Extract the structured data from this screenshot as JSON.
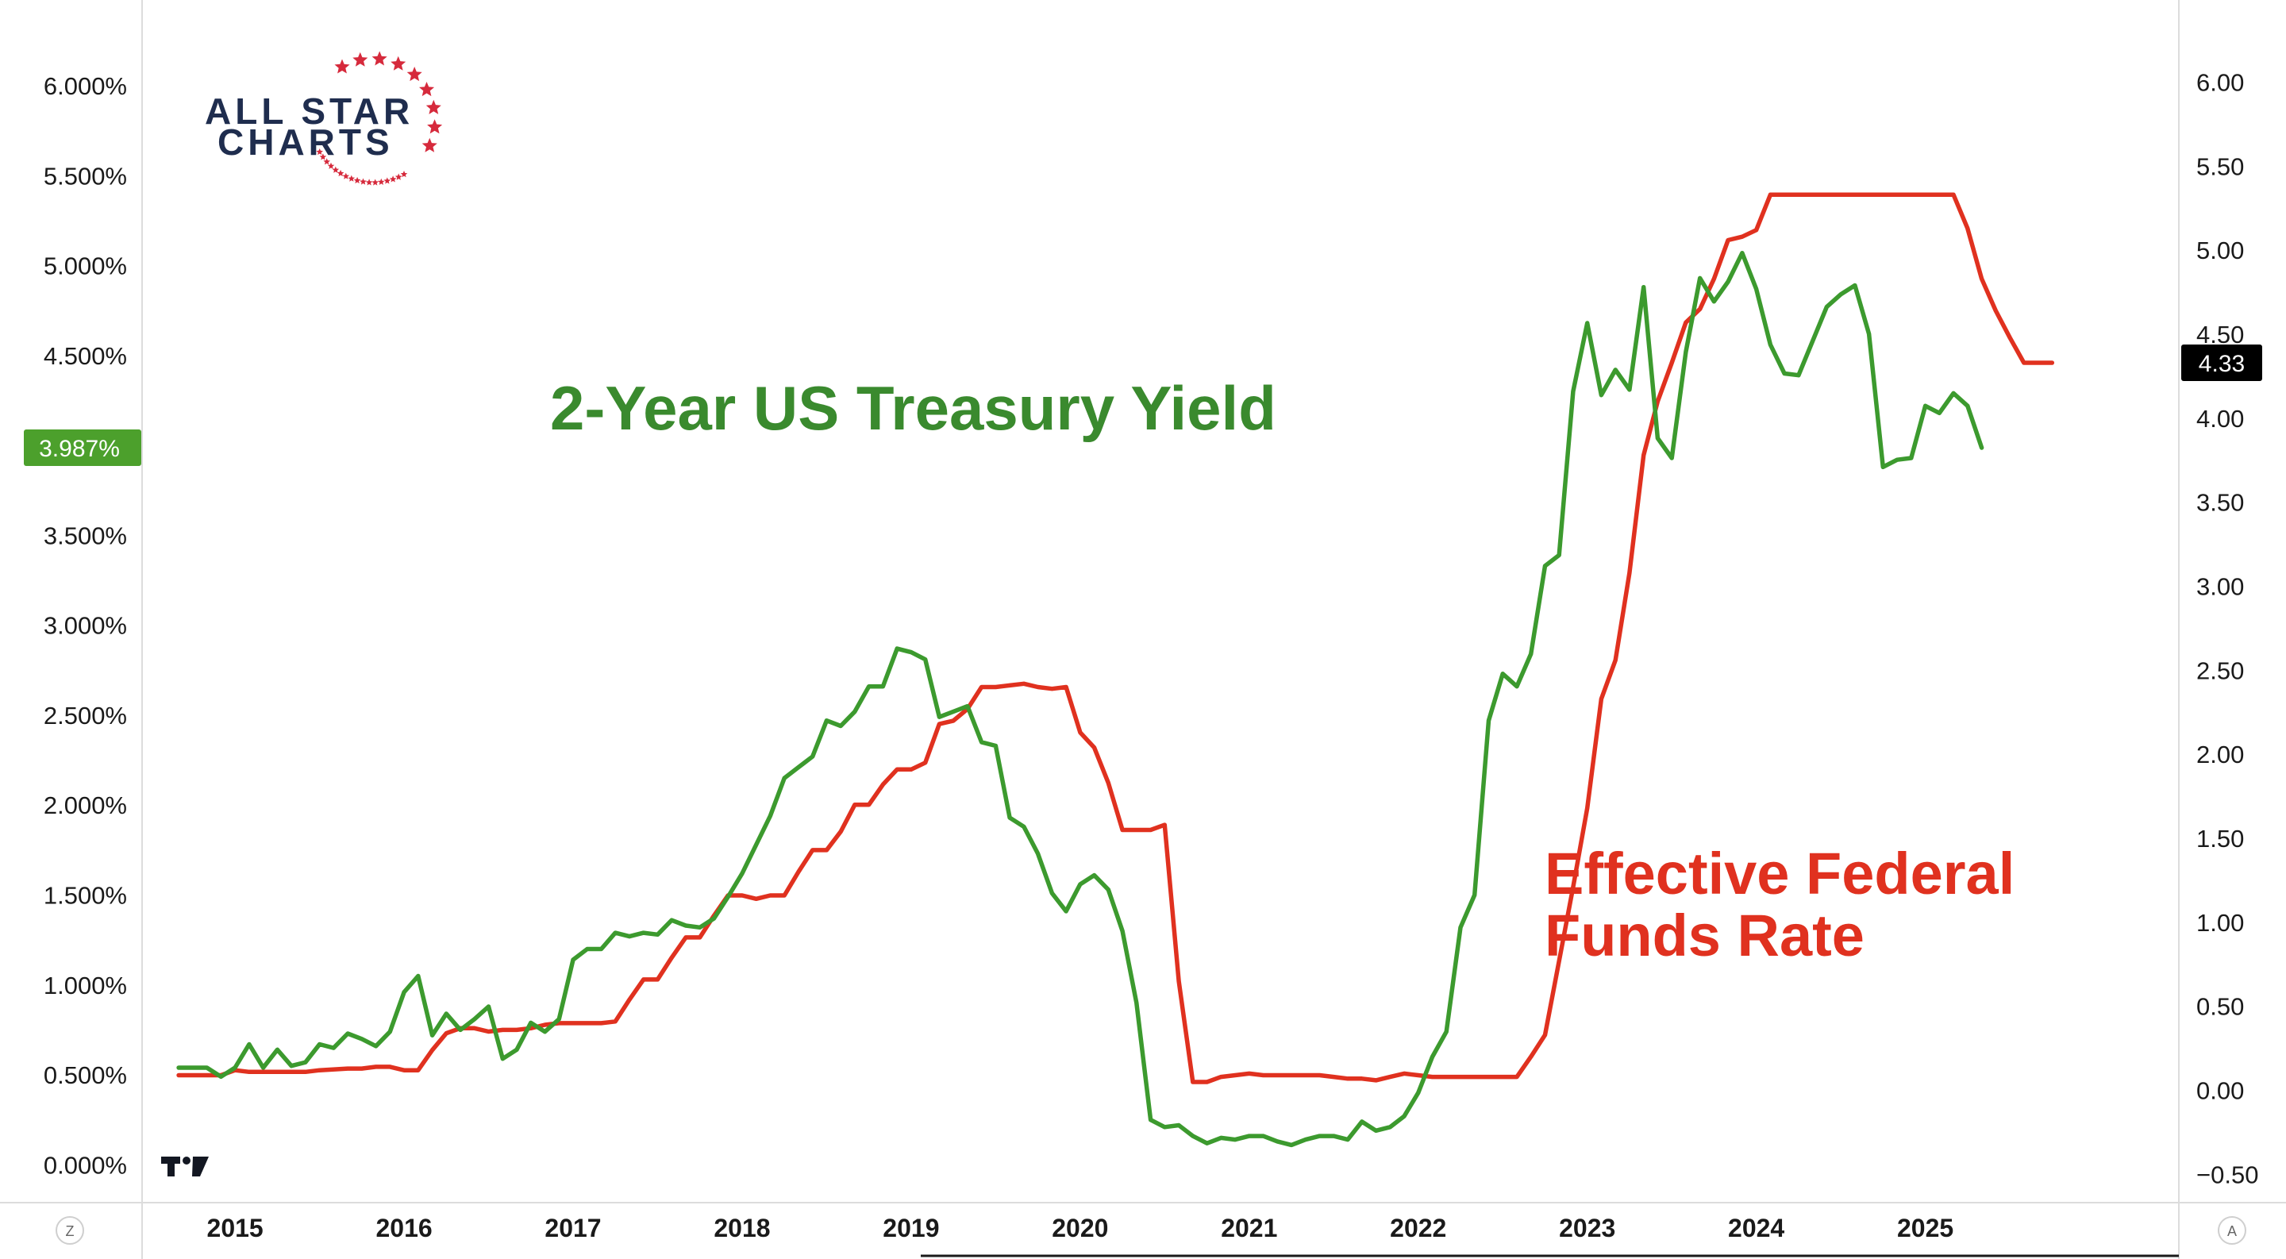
{
  "logo": {
    "line1": "ALL STAR",
    "line2": "CHARTS",
    "brand_navy": "#1f2d4e",
    "brand_red": "#d62a3c"
  },
  "annotations": {
    "treasury": "2-Year US Treasury Yield",
    "fed_line1": "Effective Federal",
    "fed_line2": "Funds Rate"
  },
  "badges": {
    "left_value": "3.987%",
    "right_value": "4.33"
  },
  "corner_buttons": {
    "left": "Z",
    "right": "A"
  },
  "chart_data": {
    "type": "line",
    "x_tick_labels": [
      "2015",
      "2016",
      "2017",
      "2018",
      "2019",
      "2020",
      "2021",
      "2022",
      "2023",
      "2024",
      "2025"
    ],
    "xlim": [
      2014.45,
      2026.5
    ],
    "left_axis": {
      "ticks": [
        "6.000%",
        "5.500%",
        "5.000%",
        "4.500%",
        "4.000%",
        "3.500%",
        "3.000%",
        "2.500%",
        "2.000%",
        "1.500%",
        "1.000%",
        "0.500%",
        "0.000%"
      ],
      "ylim": [
        -0.1,
        6.3
      ]
    },
    "right_axis": {
      "ticks": [
        "6.00",
        "5.50",
        "5.00",
        "4.50",
        "4.00",
        "3.50",
        "3.00",
        "2.50",
        "2.00",
        "1.50",
        "1.00",
        "0.50",
        "0.00",
        "−0.50"
      ],
      "ylim": [
        -0.55,
        6.3
      ]
    },
    "grid": false,
    "colors": {
      "treasury": "#3c9a2e",
      "fed": "#e0311f",
      "left_badge": "#4ca02c",
      "right_badge": "#000000"
    },
    "series": [
      {
        "key": "treasury",
        "axis": "left",
        "points": [
          [
            "2014-09",
            0.54
          ],
          [
            "2014-11",
            0.54
          ],
          [
            "2014-12",
            0.49
          ],
          [
            "2015-01",
            0.54
          ],
          [
            "2015-02",
            0.67
          ],
          [
            "2015-03",
            0.54
          ],
          [
            "2015-04",
            0.64
          ],
          [
            "2015-05",
            0.55
          ],
          [
            "2015-06",
            0.57
          ],
          [
            "2015-07",
            0.67
          ],
          [
            "2015-08",
            0.65
          ],
          [
            "2015-09",
            0.73
          ],
          [
            "2015-10",
            0.7
          ],
          [
            "2015-11",
            0.66
          ],
          [
            "2015-12",
            0.74
          ],
          [
            "2016-01",
            0.96
          ],
          [
            "2016-02",
            1.05
          ],
          [
            "2016-03",
            0.72
          ],
          [
            "2016-04",
            0.84
          ],
          [
            "2016-05",
            0.75
          ],
          [
            "2016-06",
            0.81
          ],
          [
            "2016-07",
            0.88
          ],
          [
            "2016-08",
            0.59
          ],
          [
            "2016-09",
            0.64
          ],
          [
            "2016-10",
            0.79
          ],
          [
            "2016-11",
            0.74
          ],
          [
            "2016-12",
            0.81
          ],
          [
            "2017-01",
            1.14
          ],
          [
            "2017-02",
            1.2
          ],
          [
            "2017-03",
            1.2
          ],
          [
            "2017-04",
            1.29
          ],
          [
            "2017-05",
            1.27
          ],
          [
            "2017-06",
            1.29
          ],
          [
            "2017-07",
            1.28
          ],
          [
            "2017-08",
            1.36
          ],
          [
            "2017-09",
            1.33
          ],
          [
            "2017-10",
            1.32
          ],
          [
            "2017-11",
            1.37
          ],
          [
            "2017-12",
            1.49
          ],
          [
            "2018-01",
            1.62
          ],
          [
            "2018-02",
            1.78
          ],
          [
            "2018-03",
            1.94
          ],
          [
            "2018-04",
            2.15
          ],
          [
            "2018-05",
            2.21
          ],
          [
            "2018-06",
            2.27
          ],
          [
            "2018-07",
            2.47
          ],
          [
            "2018-08",
            2.44
          ],
          [
            "2018-09",
            2.52
          ],
          [
            "2018-10",
            2.66
          ],
          [
            "2018-11",
            2.66
          ],
          [
            "2018-12",
            2.87
          ],
          [
            "2019-01",
            2.85
          ],
          [
            "2019-02",
            2.81
          ],
          [
            "2019-03",
            2.49
          ],
          [
            "2019-04",
            2.52
          ],
          [
            "2019-05",
            2.55
          ],
          [
            "2019-06",
            2.35
          ],
          [
            "2019-07",
            2.33
          ],
          [
            "2019-08",
            1.93
          ],
          [
            "2019-09",
            1.88
          ],
          [
            "2019-10",
            1.73
          ],
          [
            "2019-11",
            1.51
          ],
          [
            "2019-12",
            1.41
          ],
          [
            "2020-01",
            1.56
          ],
          [
            "2020-02",
            1.61
          ],
          [
            "2020-03",
            1.53
          ],
          [
            "2020-04",
            1.3
          ],
          [
            "2020-05",
            0.9
          ],
          [
            "2020-06",
            0.25
          ],
          [
            "2020-07",
            0.21
          ],
          [
            "2020-08",
            0.22
          ],
          [
            "2020-09",
            0.16
          ],
          [
            "2020-10",
            0.12
          ],
          [
            "2020-11",
            0.15
          ],
          [
            "2020-12",
            0.14
          ],
          [
            "2021-01",
            0.16
          ],
          [
            "2021-02",
            0.16
          ],
          [
            "2021-03",
            0.13
          ],
          [
            "2021-04",
            0.11
          ],
          [
            "2021-05",
            0.14
          ],
          [
            "2021-06",
            0.16
          ],
          [
            "2021-07",
            0.16
          ],
          [
            "2021-08",
            0.14
          ],
          [
            "2021-09",
            0.24
          ],
          [
            "2021-10",
            0.19
          ],
          [
            "2021-11",
            0.21
          ],
          [
            "2021-12",
            0.27
          ],
          [
            "2022-01",
            0.4
          ],
          [
            "2022-02",
            0.6
          ],
          [
            "2022-03",
            0.74
          ],
          [
            "2022-04",
            1.32
          ],
          [
            "2022-05",
            1.5
          ],
          [
            "2022-06",
            2.47
          ],
          [
            "2022-07",
            2.73
          ],
          [
            "2022-08",
            2.66
          ],
          [
            "2022-09",
            2.84
          ],
          [
            "2022-10",
            3.33
          ],
          [
            "2022-11",
            3.39
          ],
          [
            "2022-12",
            4.3
          ],
          [
            "2023-01",
            4.68
          ],
          [
            "2023-02",
            4.28
          ],
          [
            "2023-03",
            4.42
          ],
          [
            "2023-04",
            4.31
          ],
          [
            "2023-05",
            4.88
          ],
          [
            "2023-06",
            4.04
          ],
          [
            "2023-07",
            3.93
          ],
          [
            "2023-08",
            4.52
          ],
          [
            "2023-09",
            4.93
          ],
          [
            "2023-10",
            4.8
          ],
          [
            "2023-11",
            4.91
          ],
          [
            "2023-12",
            5.07
          ],
          [
            "2024-01",
            4.87
          ],
          [
            "2024-02",
            4.56
          ],
          [
            "2024-03",
            4.4
          ],
          [
            "2024-04",
            4.39
          ],
          [
            "2024-05",
            4.58
          ],
          [
            "2024-06",
            4.77
          ],
          [
            "2024-07",
            4.84
          ],
          [
            "2024-08",
            4.89
          ],
          [
            "2024-09",
            4.62
          ],
          [
            "2024-10",
            3.88
          ],
          [
            "2024-11",
            3.92
          ],
          [
            "2024-12",
            3.93
          ],
          [
            "2025-01",
            4.22
          ],
          [
            "2025-02",
            4.18
          ],
          [
            "2025-03",
            4.29
          ],
          [
            "2025-04",
            4.22
          ],
          [
            "2025-05",
            3.987
          ]
        ]
      },
      {
        "key": "fed",
        "axis": "right",
        "points": [
          [
            "2014-09",
            0.09
          ],
          [
            "2014-12",
            0.09
          ],
          [
            "2015-01",
            0.12
          ],
          [
            "2015-02",
            0.11
          ],
          [
            "2015-06",
            0.11
          ],
          [
            "2015-07",
            0.12
          ],
          [
            "2015-09",
            0.13
          ],
          [
            "2015-10",
            0.13
          ],
          [
            "2015-11",
            0.14
          ],
          [
            "2015-12",
            0.14
          ],
          [
            "2016-01",
            0.12
          ],
          [
            "2016-02",
            0.12
          ],
          [
            "2016-03",
            0.24
          ],
          [
            "2016-04",
            0.34
          ],
          [
            "2016-05",
            0.37
          ],
          [
            "2016-06",
            0.37
          ],
          [
            "2016-07",
            0.35
          ],
          [
            "2016-08",
            0.36
          ],
          [
            "2016-09",
            0.36
          ],
          [
            "2016-10",
            0.37
          ],
          [
            "2016-11",
            0.39
          ],
          [
            "2016-12",
            0.4
          ],
          [
            "2017-01",
            0.4
          ],
          [
            "2017-02",
            0.4
          ],
          [
            "2017-03",
            0.4
          ],
          [
            "2017-04",
            0.41
          ],
          [
            "2017-05",
            0.54
          ],
          [
            "2017-06",
            0.66
          ],
          [
            "2017-07",
            0.66
          ],
          [
            "2017-08",
            0.79
          ],
          [
            "2017-09",
            0.91
          ],
          [
            "2017-10",
            0.91
          ],
          [
            "2017-11",
            1.04
          ],
          [
            "2017-12",
            1.16
          ],
          [
            "2018-01",
            1.16
          ],
          [
            "2018-02",
            1.14
          ],
          [
            "2018-03",
            1.16
          ],
          [
            "2018-04",
            1.16
          ],
          [
            "2018-05",
            1.3
          ],
          [
            "2018-06",
            1.43
          ],
          [
            "2018-07",
            1.43
          ],
          [
            "2018-08",
            1.54
          ],
          [
            "2018-09",
            1.7
          ],
          [
            "2018-10",
            1.7
          ],
          [
            "2018-11",
            1.82
          ],
          [
            "2018-12",
            1.91
          ],
          [
            "2019-01",
            1.91
          ],
          [
            "2019-02",
            1.95
          ],
          [
            "2019-03",
            2.18
          ],
          [
            "2019-04",
            2.2
          ],
          [
            "2019-05",
            2.27
          ],
          [
            "2019-06",
            2.4
          ],
          [
            "2019-07",
            2.4
          ],
          [
            "2019-08",
            2.41
          ],
          [
            "2019-09",
            2.42
          ],
          [
            "2019-10",
            2.4
          ],
          [
            "2019-11",
            2.39
          ],
          [
            "2019-12",
            2.4
          ],
          [
            "2020-01",
            2.13
          ],
          [
            "2020-02",
            2.04
          ],
          [
            "2020-03",
            1.83
          ],
          [
            "2020-04",
            1.55
          ],
          [
            "2020-05",
            1.55
          ],
          [
            "2020-06",
            1.55
          ],
          [
            "2020-07",
            1.58
          ],
          [
            "2020-08",
            0.65
          ],
          [
            "2020-09",
            0.05
          ],
          [
            "2020-10",
            0.05
          ],
          [
            "2020-11",
            0.08
          ],
          [
            "2020-12",
            0.09
          ],
          [
            "2021-01",
            0.1
          ],
          [
            "2021-02",
            0.09
          ],
          [
            "2021-03",
            0.09
          ],
          [
            "2021-04",
            0.09
          ],
          [
            "2021-05",
            0.09
          ],
          [
            "2021-06",
            0.09
          ],
          [
            "2021-07",
            0.08
          ],
          [
            "2021-08",
            0.07
          ],
          [
            "2021-09",
            0.07
          ],
          [
            "2021-10",
            0.06
          ],
          [
            "2021-11",
            0.08
          ],
          [
            "2021-12",
            0.1
          ],
          [
            "2022-01",
            0.09
          ],
          [
            "2022-02",
            0.08
          ],
          [
            "2022-03",
            0.08
          ],
          [
            "2022-04",
            0.08
          ],
          [
            "2022-05",
            0.08
          ],
          [
            "2022-06",
            0.08
          ],
          [
            "2022-07",
            0.08
          ],
          [
            "2022-08",
            0.08
          ],
          [
            "2022-09",
            0.2
          ],
          [
            "2022-10",
            0.33
          ],
          [
            "2022-11",
            0.77
          ],
          [
            "2022-12",
            1.21
          ],
          [
            "2023-01",
            1.68
          ],
          [
            "2023-02",
            2.33
          ],
          [
            "2023-03",
            2.56
          ],
          [
            "2023-04",
            3.08
          ],
          [
            "2023-05",
            3.78
          ],
          [
            "2023-06",
            4.1
          ],
          [
            "2023-07",
            4.33
          ],
          [
            "2023-08",
            4.57
          ],
          [
            "2023-09",
            4.65
          ],
          [
            "2023-10",
            4.83
          ],
          [
            "2023-11",
            5.06
          ],
          [
            "2023-12",
            5.08
          ],
          [
            "2024-01",
            5.12
          ],
          [
            "2024-02",
            5.33
          ],
          [
            "2024-03",
            5.33
          ],
          [
            "2024-04",
            5.33
          ],
          [
            "2024-05",
            5.33
          ],
          [
            "2024-06",
            5.33
          ],
          [
            "2024-07",
            5.33
          ],
          [
            "2024-08",
            5.33
          ],
          [
            "2024-09",
            5.33
          ],
          [
            "2024-10",
            5.33
          ],
          [
            "2024-11",
            5.33
          ],
          [
            "2024-12",
            5.33
          ],
          [
            "2025-01",
            5.33
          ],
          [
            "2025-02",
            5.33
          ],
          [
            "2025-03",
            5.33
          ],
          [
            "2025-04",
            5.13
          ],
          [
            "2025-05",
            4.83
          ],
          [
            "2025-06",
            4.64
          ],
          [
            "2025-07",
            4.48
          ],
          [
            "2025-08",
            4.33
          ],
          [
            "2025-09",
            4.33
          ],
          [
            "2025-10",
            4.33
          ]
        ]
      }
    ]
  }
}
